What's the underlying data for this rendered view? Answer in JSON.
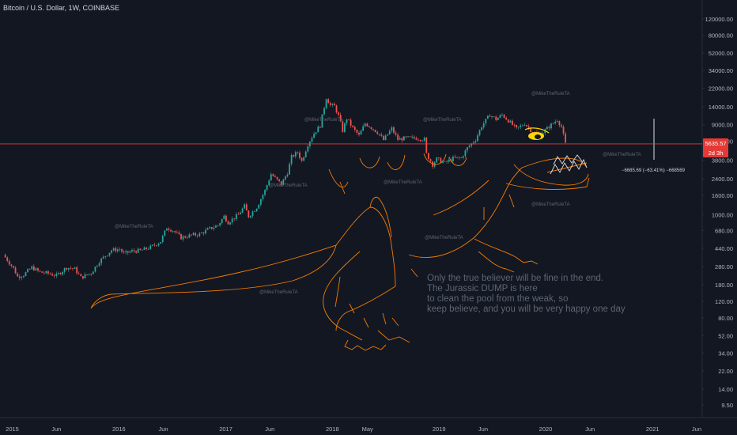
{
  "header": {
    "title": "Bitcoin / U.S. Dollar, 1W, COINBASE"
  },
  "annotations": {
    "watermark": "@MikeTheRuleTA",
    "note_lines": [
      "Only the true believer will be fine in the end.",
      "The Jurassic DUMP is here",
      "to clean the pool from the weak, so",
      "keep believe, and you will be very happy one day"
    ],
    "measure_label": "−6685.69 (−63.41%) −668569"
  },
  "price_badge": {
    "value": "5635.57",
    "countdown": "2d 3h",
    "color": "#e53935"
  },
  "colors": {
    "up": "#26a69a",
    "down": "#ef5350",
    "drawing": "#f57c00",
    "hline": "#e53935",
    "background": "#131722"
  },
  "chart_data": {
    "type": "candlestick",
    "symbol": "Bitcoin / U.S. Dollar",
    "interval": "1W",
    "exchange": "COINBASE",
    "yscale": "log",
    "ylim": [
      7.0,
      190000
    ],
    "xlim": [
      "2014-11-20",
      "2021-06-20"
    ],
    "y_ticks": [
      "120000.00",
      "80000.00",
      "52000.00",
      "34000.00",
      "22000.00",
      "14000.00",
      "9000.00",
      "6000.00",
      "3800.00",
      "2400.00",
      "1600.00",
      "1000.00",
      "680.00",
      "440.00",
      "280.00",
      "180.00",
      "120.00",
      "80.00",
      "52.00",
      "34.00",
      "22.00",
      "14.00",
      "9.50"
    ],
    "x_ticks": [
      {
        "label": "2015",
        "date": "2015-01-01"
      },
      {
        "label": "Jun",
        "date": "2015-06-01"
      },
      {
        "label": "2016",
        "date": "2016-01-01"
      },
      {
        "label": "Jun",
        "date": "2016-06-01"
      },
      {
        "label": "2017",
        "date": "2017-01-01"
      },
      {
        "label": "Jun",
        "date": "2017-06-01"
      },
      {
        "label": "2018",
        "date": "2018-01-01"
      },
      {
        "label": "May",
        "date": "2018-05-01"
      },
      {
        "label": "2019",
        "date": "2019-01-01"
      },
      {
        "label": "Jun",
        "date": "2019-06-01"
      },
      {
        "label": "2020",
        "date": "2020-01-01"
      },
      {
        "label": "Jun",
        "date": "2020-06-01"
      },
      {
        "label": "2021",
        "date": "2021-01-01"
      },
      {
        "label": "Jun",
        "date": "2021-06-01"
      }
    ],
    "horizontal_line": 5635.57,
    "close_points": [
      [
        "2014-12-01",
        375
      ],
      [
        "2014-12-15",
        330
      ],
      [
        "2015-01-05",
        270
      ],
      [
        "2015-01-19",
        220
      ],
      [
        "2015-02-09",
        230
      ],
      [
        "2015-03-09",
        275
      ],
      [
        "2015-04-06",
        245
      ],
      [
        "2015-05-04",
        238
      ],
      [
        "2015-06-01",
        225
      ],
      [
        "2015-07-06",
        275
      ],
      [
        "2015-08-03",
        265
      ],
      [
        "2015-08-24",
        215
      ],
      [
        "2015-09-28",
        240
      ],
      [
        "2015-10-26",
        320
      ],
      [
        "2015-11-09",
        350
      ],
      [
        "2015-12-07",
        420
      ],
      [
        "2016-01-04",
        430
      ],
      [
        "2016-01-18",
        385
      ],
      [
        "2016-02-15",
        410
      ],
      [
        "2016-03-14",
        415
      ],
      [
        "2016-04-18",
        450
      ],
      [
        "2016-05-23",
        520
      ],
      [
        "2016-06-13",
        730
      ],
      [
        "2016-07-04",
        680
      ],
      [
        "2016-08-01",
        570
      ],
      [
        "2016-09-05",
        605
      ],
      [
        "2016-10-03",
        620
      ],
      [
        "2016-11-07",
        710
      ],
      [
        "2016-12-05",
        770
      ],
      [
        "2016-12-26",
        960
      ],
      [
        "2017-01-09",
        830
      ],
      [
        "2017-02-13",
        1000
      ],
      [
        "2017-03-06",
        1230
      ],
      [
        "2017-03-20",
        960
      ],
      [
        "2017-04-17",
        1200
      ],
      [
        "2017-05-15",
        1800
      ],
      [
        "2017-06-05",
        2700
      ],
      [
        "2017-07-10",
        2100
      ],
      [
        "2017-07-31",
        2800
      ],
      [
        "2017-08-14",
        4100
      ],
      [
        "2017-09-04",
        4600
      ],
      [
        "2017-09-18",
        3700
      ],
      [
        "2017-10-09",
        5600
      ],
      [
        "2017-10-30",
        7300
      ],
      [
        "2017-11-20",
        8800
      ],
      [
        "2017-12-11",
        17500
      ],
      [
        "2017-12-25",
        14500
      ],
      [
        "2018-01-08",
        14200
      ],
      [
        "2018-01-22",
        11200
      ],
      [
        "2018-02-05",
        7800
      ],
      [
        "2018-02-19",
        10500
      ],
      [
        "2018-03-12",
        8300
      ],
      [
        "2018-04-02",
        6900
      ],
      [
        "2018-04-23",
        9300
      ],
      [
        "2018-05-14",
        8400
      ],
      [
        "2018-06-04",
        7500
      ],
      [
        "2018-06-25",
        6200
      ],
      [
        "2018-07-23",
        8200
      ],
      [
        "2018-08-13",
        6300
      ],
      [
        "2018-09-10",
        6500
      ],
      [
        "2018-10-15",
        6500
      ],
      [
        "2018-11-12",
        6300
      ],
      [
        "2018-11-19",
        4400
      ],
      [
        "2018-12-10",
        3400
      ],
      [
        "2018-12-24",
        3900
      ],
      [
        "2019-01-21",
        3550
      ],
      [
        "2019-02-18",
        3950
      ],
      [
        "2019-03-18",
        4000
      ],
      [
        "2019-04-08",
        5100
      ],
      [
        "2019-05-06",
        6300
      ],
      [
        "2019-05-27",
        8700
      ],
      [
        "2019-06-24",
        11500
      ],
      [
        "2019-07-15",
        10300
      ],
      [
        "2019-08-05",
        11500
      ],
      [
        "2019-08-26",
        10000
      ],
      [
        "2019-09-23",
        8100
      ],
      [
        "2019-10-21",
        9300
      ],
      [
        "2019-11-18",
        7500
      ],
      [
        "2019-12-16",
        7200
      ],
      [
        "2020-01-13",
        8600
      ],
      [
        "2020-02-10",
        10200
      ],
      [
        "2020-02-24",
        8600
      ],
      [
        "2020-03-09",
        5635.57
      ]
    ]
  }
}
